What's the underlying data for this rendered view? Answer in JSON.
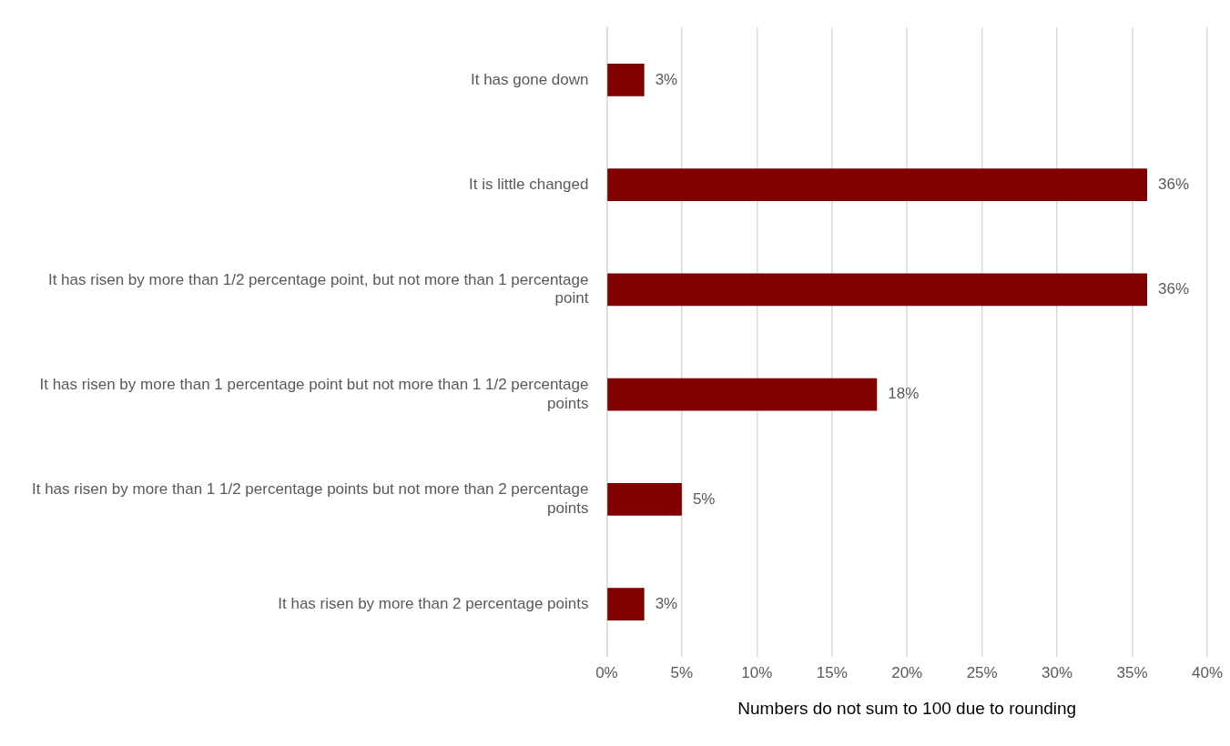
{
  "chart_data": {
    "type": "bar",
    "orientation": "horizontal",
    "xlabel": "Numbers do not sum to 100 due to rounding",
    "categories": [
      "It has gone down",
      "It is little changed",
      "It has risen by more than 1/2 percentage point, but not more than 1 percentage point",
      "It has risen by more than 1 percentage point but not more than 1 1/2 percentage points",
      "It has risen by more than 1 1/2 percentage points but not more than 2 percentage points",
      "It has risen by more than 2 percentage points"
    ],
    "values": [
      2.5,
      36,
      36,
      18,
      5,
      2.5
    ],
    "value_labels": [
      "3%",
      "36%",
      "36%",
      "18%",
      "5%",
      "3%"
    ],
    "color": "#800000",
    "xlim": [
      0,
      40
    ],
    "xticks": [
      {
        "value": 0,
        "label": "0%"
      },
      {
        "value": 5,
        "label": "5%"
      },
      {
        "value": 10,
        "label": "10%"
      },
      {
        "value": 15,
        "label": "15%"
      },
      {
        "value": 20,
        "label": "20%"
      },
      {
        "value": 25,
        "label": "25%"
      },
      {
        "value": 30,
        "label": "30%"
      },
      {
        "value": 35,
        "label": "35%"
      },
      {
        "value": 40,
        "label": "40%"
      }
    ],
    "grid": "x",
    "legend": false
  }
}
